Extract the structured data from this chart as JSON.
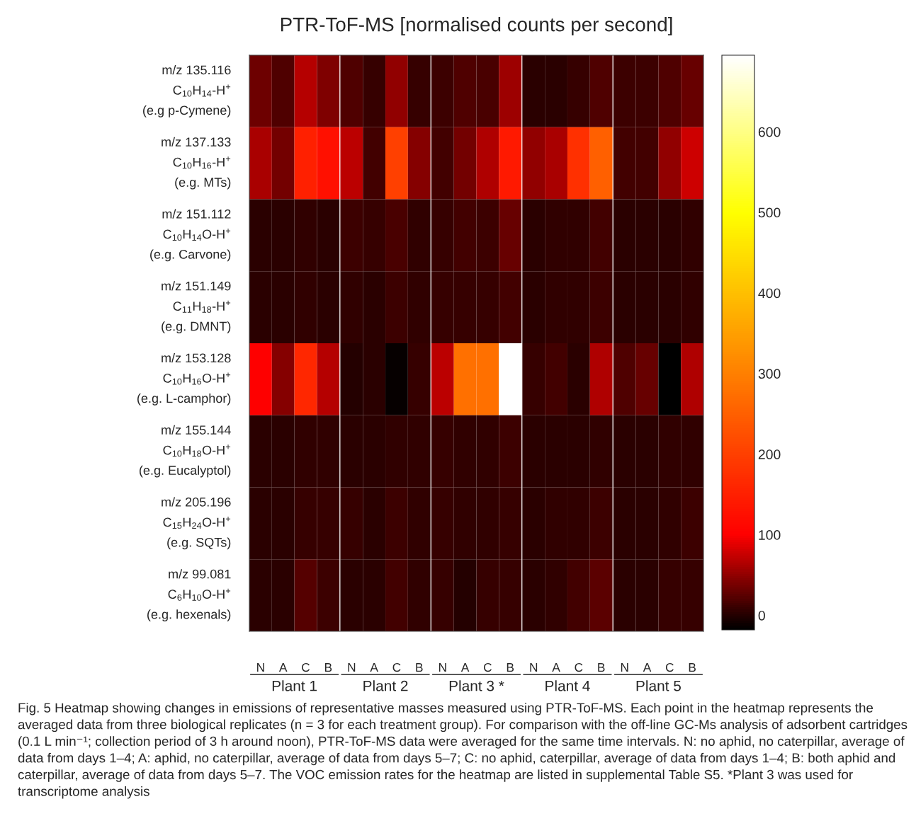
{
  "chart_data": {
    "type": "heatmap",
    "title": "PTR-ToF-MS [normalised counts per second]",
    "categories": [
      "N",
      "A",
      "C",
      "B",
      "N",
      "A",
      "C",
      "B",
      "N",
      "A",
      "C",
      "B",
      "N",
      "A",
      "C",
      "B",
      "N",
      "A",
      "C",
      "B"
    ],
    "y_categories": [
      "m/z 135.116\nC$_{10}$H$_{14}$-H$^{+}$\n(e.g p-Cymene)",
      "m/z 137.133\nC$_{10}$H$_{16}$-H$^{+}$\n(e.g. MTs)",
      "m/z 151.112\nC$_{10}$H$_{14}$O-H$^{+}$\n(e.g. Carvone)",
      "m/z 151.149\nC$_{11}$H$_{18}$-H$^{+}$\n(e.g. DMNT)",
      "m/z 153.128\nC$_{10}$H$_{16}$O-H$^{+}$\n(e.g. L-camphor)",
      "m/z 155.144\nC$_{10}$H$_{18}$O-H$^{+}$\n(e.g. Eucalyptol)",
      "m/z 205.196\nC$_{15}$H$_{24}$O-H$^{+}$\n(e.g. SQTs)",
      "m/z 99.081\nC$_{6}$H$_{10}$O-H$^{+}$\n(e.g. hexenals)"
    ],
    "cells": [
      [
        34,
        19,
        67,
        41,
        19,
        8,
        49,
        8,
        12,
        19,
        17,
        56,
        4,
        4,
        8,
        19,
        12,
        12,
        19,
        30
      ],
      [
        60,
        37,
        150,
        125,
        71,
        15,
        200,
        45,
        15,
        37,
        63,
        138,
        49,
        60,
        175,
        251,
        15,
        15,
        49,
        78
      ],
      [
        4,
        4,
        6,
        4,
        12,
        8,
        17,
        6,
        8,
        14,
        12,
        30,
        4,
        6,
        6,
        14,
        4,
        4,
        4,
        6
      ],
      [
        4,
        4,
        6,
        4,
        6,
        4,
        12,
        6,
        8,
        8,
        8,
        15,
        4,
        6,
        6,
        10,
        4,
        4,
        4,
        6
      ],
      [
        100,
        45,
        163,
        67,
        0,
        4,
        -14,
        8,
        71,
        276,
        276,
        695,
        8,
        14,
        4,
        63,
        19,
        30,
        -18,
        63
      ],
      [
        4,
        4,
        6,
        6,
        4,
        4,
        6,
        6,
        8,
        6,
        6,
        10,
        4,
        4,
        4,
        6,
        4,
        4,
        6,
        6
      ],
      [
        4,
        4,
        8,
        8,
        8,
        4,
        12,
        6,
        8,
        6,
        6,
        8,
        4,
        6,
        6,
        12,
        4,
        4,
        6,
        12
      ],
      [
        4,
        4,
        23,
        12,
        4,
        4,
        14,
        6,
        8,
        0,
        8,
        8,
        4,
        6,
        14,
        26,
        4,
        4,
        8,
        8
      ]
    ],
    "clim": [
      -18,
      695
    ],
    "cticks": [
      0,
      100,
      200,
      300,
      400,
      500,
      600
    ],
    "annotations": [
      {
        "text": "Plant 1"
      },
      {
        "text": "Plant 2"
      },
      {
        "text": "Plant 3 *"
      },
      {
        "text": "Plant 4"
      },
      {
        "text": "Plant 5"
      },
      "Fig. 5 Heatmap showing changes in emissions of representative masses measured using PTR-ToF-MS. Each point in the heatmap represents the averaged data from three biological replicates (n = 3 for each treatment group). For comparison with the off-line GC-Ms analysis of adsorbent cartridges (0.1 L min⁻¹; collection period of 3 h around noon), PTR-ToF-MS data were averaged for the same time intervals. N: no aphid, no caterpillar, average of data from days 1–4; A: aphid, no caterpillar, average of data from days 5–7; C: no aphid, caterpillar, average of data from days 1–4; B: both aphid and caterpillar, average of data from days 5–7. The VOC emission rates for the heatmap are listed in supplemental Table S5. *Plant 3 was used for transcriptome analysis"
    ]
  }
}
